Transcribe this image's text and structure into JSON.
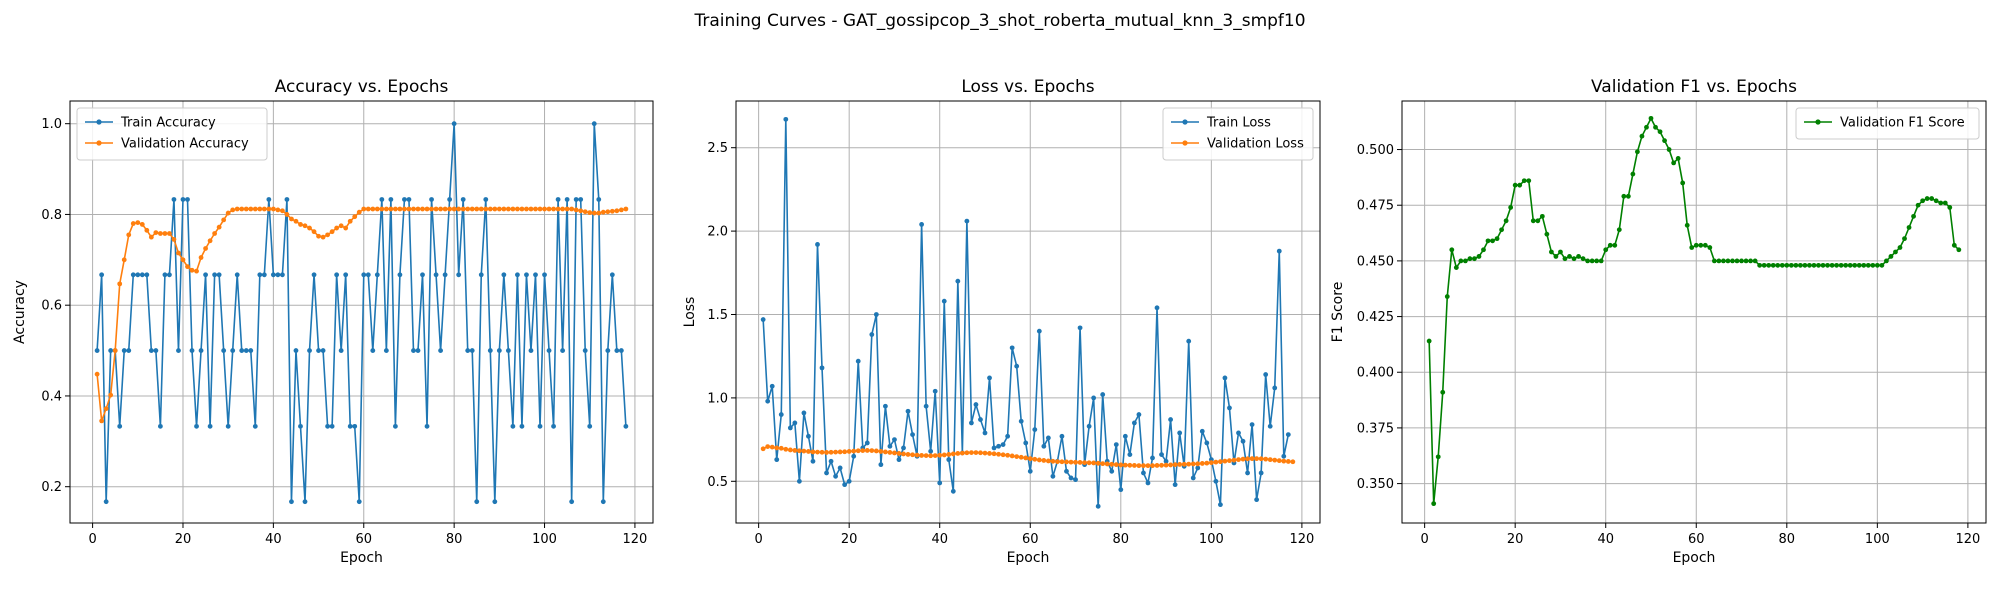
{
  "figure": {
    "suptitle": "Training Curves - GAT_gossipcop_3_shot_roberta_mutual_knn_3_smpf10"
  },
  "colors": {
    "train": "#1f77b4",
    "val": "#ff7f0e",
    "f1": "#008000",
    "grid": "#b0b0b0"
  },
  "chart_data": [
    {
      "type": "line",
      "title": "Accuracy vs. Epochs",
      "xlabel": "Epoch",
      "ylabel": "Accuracy",
      "xlim": [
        -5,
        124
      ],
      "ylim": [
        0.12,
        1.05
      ],
      "xticks": [
        0,
        20,
        40,
        60,
        80,
        100,
        120
      ],
      "yticks": [
        0.2,
        0.4,
        0.6,
        0.8,
        1.0
      ],
      "ytick_labels": [
        "0.2",
        "0.4",
        "0.6",
        "0.8",
        "1.0"
      ],
      "grid": true,
      "legend_loc": "upper-left",
      "series": [
        {
          "name": "Train Accuracy",
          "color": "#1f77b4",
          "values": [
            0.5,
            0.667,
            0.167,
            0.5,
            0.5,
            0.333,
            0.5,
            0.5,
            0.667,
            0.667,
            0.667,
            0.667,
            0.5,
            0.5,
            0.333,
            0.667,
            0.667,
            0.833,
            0.5,
            0.833,
            0.833,
            0.5,
            0.333,
            0.5,
            0.667,
            0.333,
            0.667,
            0.667,
            0.5,
            0.333,
            0.5,
            0.667,
            0.5,
            0.5,
            0.5,
            0.333,
            0.667,
            0.667,
            0.833,
            0.667,
            0.667,
            0.667,
            0.833,
            0.167,
            0.5,
            0.333,
            0.167,
            0.5,
            0.667,
            0.5,
            0.5,
            0.333,
            0.333,
            0.667,
            0.5,
            0.667,
            0.333,
            0.333,
            0.167,
            0.667,
            0.667,
            0.5,
            0.667,
            0.833,
            0.5,
            0.833,
            0.333,
            0.667,
            0.833,
            0.833,
            0.5,
            0.5,
            0.667,
            0.333,
            0.833,
            0.667,
            0.5,
            0.667,
            0.833,
            1.0,
            0.667,
            0.833,
            0.5,
            0.5,
            0.167,
            0.667,
            0.833,
            0.5,
            0.167,
            0.5,
            0.667,
            0.5,
            0.333,
            0.667,
            0.333,
            0.667,
            0.5,
            0.667,
            0.333,
            0.667,
            0.5,
            0.333,
            0.833,
            0.5,
            0.833,
            0.167,
            0.833,
            0.833,
            0.5,
            0.333,
            1.0,
            0.833,
            0.167,
            0.5,
            0.667,
            0.5,
            0.5,
            0.333
          ]
        },
        {
          "name": "Validation Accuracy",
          "color": "#ff7f0e",
          "values": [
            0.448,
            0.345,
            0.372,
            0.402,
            0.5,
            0.647,
            0.7,
            0.755,
            0.78,
            0.782,
            0.778,
            0.765,
            0.75,
            0.76,
            0.758,
            0.758,
            0.758,
            0.745,
            0.715,
            0.7,
            0.685,
            0.677,
            0.675,
            0.705,
            0.725,
            0.742,
            0.758,
            0.772,
            0.788,
            0.803,
            0.81,
            0.812,
            0.812,
            0.812,
            0.812,
            0.812,
            0.812,
            0.812,
            0.812,
            0.812,
            0.81,
            0.808,
            0.8,
            0.79,
            0.785,
            0.778,
            0.775,
            0.77,
            0.762,
            0.752,
            0.75,
            0.755,
            0.762,
            0.77,
            0.775,
            0.77,
            0.785,
            0.795,
            0.805,
            0.812,
            0.812,
            0.812,
            0.812,
            0.812,
            0.812,
            0.812,
            0.812,
            0.812,
            0.812,
            0.812,
            0.812,
            0.812,
            0.812,
            0.812,
            0.812,
            0.812,
            0.812,
            0.812,
            0.812,
            0.812,
            0.812,
            0.812,
            0.812,
            0.812,
            0.812,
            0.812,
            0.812,
            0.812,
            0.812,
            0.812,
            0.812,
            0.812,
            0.812,
            0.812,
            0.812,
            0.812,
            0.812,
            0.812,
            0.812,
            0.812,
            0.812,
            0.812,
            0.812,
            0.812,
            0.812,
            0.812,
            0.81,
            0.808,
            0.806,
            0.804,
            0.803,
            0.803,
            0.805,
            0.806,
            0.807,
            0.808,
            0.81,
            0.812
          ]
        }
      ]
    },
    {
      "type": "line",
      "title": "Loss vs. Epochs",
      "xlabel": "Epoch",
      "ylabel": "Loss",
      "xlim": [
        -5,
        124
      ],
      "ylim": [
        0.25,
        2.78
      ],
      "xticks": [
        0,
        20,
        40,
        60,
        80,
        100,
        120
      ],
      "yticks": [
        0.5,
        1.0,
        1.5,
        2.0,
        2.5
      ],
      "ytick_labels": [
        "0.5",
        "1.0",
        "1.5",
        "2.0",
        "2.5"
      ],
      "grid": true,
      "legend_loc": "upper-right",
      "series": [
        {
          "name": "Train Loss",
          "color": "#1f77b4",
          "values": [
            1.47,
            0.98,
            1.07,
            0.63,
            0.9,
            2.67,
            0.82,
            0.85,
            0.5,
            0.91,
            0.77,
            0.62,
            1.92,
            1.18,
            0.55,
            0.62,
            0.53,
            0.58,
            0.48,
            0.5,
            0.65,
            1.22,
            0.7,
            0.73,
            1.38,
            1.5,
            0.6,
            0.95,
            0.71,
            0.75,
            0.63,
            0.7,
            0.92,
            0.78,
            0.65,
            2.04,
            0.95,
            0.68,
            1.04,
            0.49,
            1.58,
            0.63,
            0.44,
            1.7,
            0.67,
            2.06,
            0.85,
            0.96,
            0.87,
            0.79,
            1.12,
            0.7,
            0.71,
            0.72,
            0.77,
            1.3,
            1.19,
            0.86,
            0.73,
            0.56,
            0.81,
            1.4,
            0.71,
            0.76,
            0.53,
            0.62,
            0.77,
            0.56,
            0.52,
            0.51,
            1.42,
            0.6,
            0.83,
            1.0,
            0.35,
            1.02,
            0.62,
            0.56,
            0.72,
            0.45,
            0.77,
            0.66,
            0.85,
            0.9,
            0.55,
            0.49,
            0.64,
            1.54,
            0.66,
            0.62,
            0.87,
            0.48,
            0.79,
            0.59,
            1.34,
            0.52,
            0.58,
            0.8,
            0.73,
            0.63,
            0.5,
            0.36,
            1.12,
            0.94,
            0.61,
            0.79,
            0.74,
            0.55,
            0.84,
            0.39,
            0.55,
            1.14,
            0.83,
            1.06,
            1.88,
            0.65,
            0.78
          ]
        },
        {
          "name": "Validation Loss",
          "color": "#ff7f0e",
          "values": [
            0.695,
            0.708,
            0.705,
            0.7,
            0.698,
            0.692,
            0.688,
            0.685,
            0.683,
            0.681,
            0.679,
            0.676,
            0.675,
            0.674,
            0.673,
            0.674,
            0.675,
            0.676,
            0.677,
            0.679,
            0.681,
            0.683,
            0.684,
            0.685,
            0.684,
            0.682,
            0.679,
            0.676,
            0.673,
            0.67,
            0.667,
            0.664,
            0.661,
            0.659,
            0.657,
            0.655,
            0.654,
            0.653,
            0.654,
            0.656,
            0.658,
            0.661,
            0.664,
            0.667,
            0.669,
            0.671,
            0.672,
            0.672,
            0.671,
            0.669,
            0.667,
            0.665,
            0.662,
            0.659,
            0.656,
            0.652,
            0.648,
            0.644,
            0.64,
            0.636,
            0.632,
            0.628,
            0.625,
            0.622,
            0.62,
            0.618,
            0.617,
            0.616,
            0.615,
            0.614,
            0.613,
            0.612,
            0.611,
            0.61,
            0.608,
            0.606,
            0.604,
            0.602,
            0.6,
            0.598,
            0.597,
            0.596,
            0.595,
            0.594,
            0.594,
            0.594,
            0.594,
            0.595,
            0.596,
            0.597,
            0.598,
            0.6,
            0.601,
            0.602,
            0.603,
            0.604,
            0.605,
            0.607,
            0.609,
            0.612,
            0.615,
            0.618,
            0.621,
            0.624,
            0.627,
            0.63,
            0.633,
            0.635,
            0.636,
            0.636,
            0.635,
            0.633,
            0.63,
            0.627,
            0.624,
            0.621,
            0.619,
            0.617
          ]
        }
      ]
    },
    {
      "type": "line",
      "title": "Validation F1 vs. Epochs",
      "xlabel": "Epoch",
      "ylabel": "F1 Score",
      "xlim": [
        -5,
        124
      ],
      "ylim": [
        0.3323,
        0.5218
      ],
      "xticks": [
        0,
        20,
        40,
        60,
        80,
        100,
        120
      ],
      "yticks": [
        0.35,
        0.375,
        0.4,
        0.425,
        0.45,
        0.475,
        0.5
      ],
      "ytick_labels": [
        "0.350",
        "0.375",
        "0.400",
        "0.425",
        "0.450",
        "0.475",
        "0.500"
      ],
      "grid": true,
      "legend_loc": "upper-right",
      "series": [
        {
          "name": "Validation F1 Score",
          "color": "#008000",
          "values": [
            0.414,
            0.341,
            0.362,
            0.391,
            0.434,
            0.455,
            0.447,
            0.45,
            0.45,
            0.451,
            0.451,
            0.452,
            0.455,
            0.459,
            0.459,
            0.46,
            0.464,
            0.468,
            0.474,
            0.484,
            0.484,
            0.486,
            0.486,
            0.468,
            0.468,
            0.47,
            0.462,
            0.454,
            0.452,
            0.454,
            0.451,
            0.452,
            0.451,
            0.452,
            0.451,
            0.45,
            0.45,
            0.45,
            0.45,
            0.455,
            0.457,
            0.457,
            0.464,
            0.479,
            0.479,
            0.489,
            0.499,
            0.506,
            0.51,
            0.514,
            0.51,
            0.508,
            0.504,
            0.5,
            0.494,
            0.496,
            0.485,
            0.466,
            0.456,
            0.457,
            0.457,
            0.457,
            0.456,
            0.45,
            0.45,
            0.45,
            0.45,
            0.45,
            0.45,
            0.45,
            0.45,
            0.45,
            0.45,
            0.448,
            0.448,
            0.448,
            0.448,
            0.448,
            0.448,
            0.448,
            0.448,
            0.448,
            0.448,
            0.448,
            0.448,
            0.448,
            0.448,
            0.448,
            0.448,
            0.448,
            0.448,
            0.448,
            0.448,
            0.448,
            0.448,
            0.448,
            0.448,
            0.448,
            0.448,
            0.448,
            0.448,
            0.45,
            0.452,
            0.454,
            0.456,
            0.46,
            0.465,
            0.47,
            0.475,
            0.477,
            0.478,
            0.478,
            0.477,
            0.476,
            0.476,
            0.474,
            0.457,
            0.455
          ]
        }
      ]
    }
  ]
}
